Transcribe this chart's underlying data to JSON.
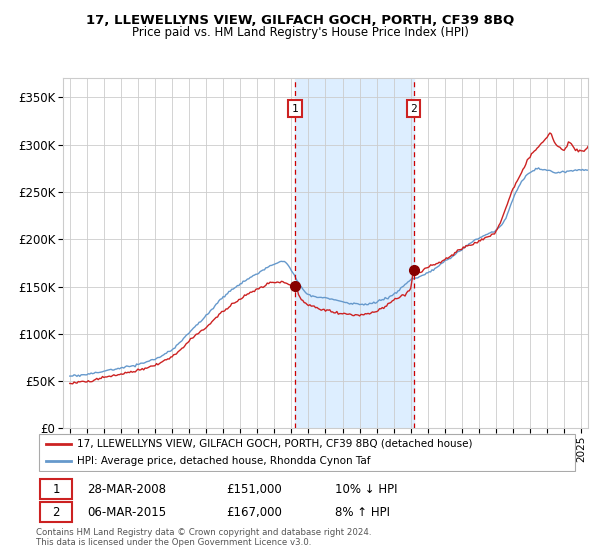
{
  "title": "17, LLEWELLYNS VIEW, GILFACH GOCH, PORTH, CF39 8BQ",
  "subtitle": "Price paid vs. HM Land Registry's House Price Index (HPI)",
  "ylim": [
    0,
    370000
  ],
  "xlim_start": 1994.6,
  "xlim_end": 2025.4,
  "yticks": [
    0,
    50000,
    100000,
    150000,
    200000,
    250000,
    300000,
    350000
  ],
  "ytick_labels": [
    "£0",
    "£50K",
    "£100K",
    "£150K",
    "£200K",
    "£250K",
    "£300K",
    "£350K"
  ],
  "xticks": [
    1995,
    1996,
    1997,
    1998,
    1999,
    2000,
    2001,
    2002,
    2003,
    2004,
    2005,
    2006,
    2007,
    2008,
    2009,
    2010,
    2011,
    2012,
    2013,
    2014,
    2015,
    2016,
    2017,
    2018,
    2019,
    2020,
    2021,
    2022,
    2023,
    2024,
    2025
  ],
  "hpi_color": "#6699cc",
  "price_color": "#cc2222",
  "dot_color": "#880000",
  "vline_color": "#cc0000",
  "shade_color": "#ddeeff",
  "marker1_x": 2008.22,
  "marker1_y": 151000,
  "marker2_x": 2015.17,
  "marker2_y": 167000,
  "legend_line1": "17, LLEWELLYNS VIEW, GILFACH GOCH, PORTH, CF39 8BQ (detached house)",
  "legend_line2": "HPI: Average price, detached house, Rhondda Cynon Taf",
  "annotation1_num": "1",
  "annotation1_date": "28-MAR-2008",
  "annotation1_price": "£151,000",
  "annotation1_hpi": "10% ↓ HPI",
  "annotation2_num": "2",
  "annotation2_date": "06-MAR-2015",
  "annotation2_price": "£167,000",
  "annotation2_hpi": "8% ↑ HPI",
  "footer": "Contains HM Land Registry data © Crown copyright and database right 2024.\nThis data is licensed under the Open Government Licence v3.0.",
  "background_color": "#ffffff",
  "grid_color": "#cccccc",
  "hpi_keypoints_yr": [
    1995,
    1996,
    1997,
    1998,
    1999,
    2000,
    2001,
    2002,
    2003,
    2004,
    2005,
    2006,
    2007,
    2007.5,
    2008,
    2008.5,
    2009,
    2009.5,
    2010,
    2011,
    2012,
    2013,
    2014,
    2015,
    2016,
    2017,
    2018,
    2019,
    2020,
    2020.5,
    2021,
    2021.5,
    2022,
    2022.5,
    2023,
    2023.5,
    2024,
    2024.5,
    2025
  ],
  "hpi_keypoints_val": [
    55000,
    57000,
    60000,
    63000,
    67000,
    72000,
    82000,
    100000,
    118000,
    138000,
    152000,
    162000,
    172000,
    175000,
    165000,
    150000,
    140000,
    137000,
    136000,
    132000,
    129000,
    132000,
    140000,
    155000,
    163000,
    175000,
    188000,
    200000,
    208000,
    218000,
    240000,
    258000,
    268000,
    272000,
    270000,
    268000,
    268000,
    270000,
    270000
  ],
  "price_keypoints_yr": [
    1995,
    1996,
    1997,
    1998,
    1999,
    2000,
    2001,
    2002,
    2003,
    2004,
    2005,
    2006,
    2007,
    2007.5,
    2008,
    2008.22,
    2008.5,
    2009,
    2009.5,
    2010,
    2011,
    2012,
    2013,
    2014,
    2015,
    2015.17,
    2015.5,
    2016,
    2017,
    2018,
    2019,
    2020,
    2020.5,
    2021,
    2021.5,
    2022,
    2022.5,
    2023,
    2023.2,
    2023.5,
    2024,
    2024.3,
    2024.5,
    2025
  ],
  "price_keypoints_val": [
    48000,
    50000,
    54000,
    58000,
    62000,
    67000,
    76000,
    92000,
    108000,
    125000,
    138000,
    148000,
    155000,
    155000,
    151000,
    151000,
    138000,
    130000,
    127000,
    124000,
    120000,
    119000,
    123000,
    135000,
    148000,
    167000,
    165000,
    170000,
    178000,
    190000,
    198000,
    208000,
    228000,
    252000,
    268000,
    285000,
    295000,
    305000,
    310000,
    298000,
    292000,
    300000,
    295000,
    290000
  ],
  "hpi_noise_seed": 10,
  "price_noise_seed": 20,
  "hpi_noise_scale": 1800,
  "price_noise_scale": 2200
}
